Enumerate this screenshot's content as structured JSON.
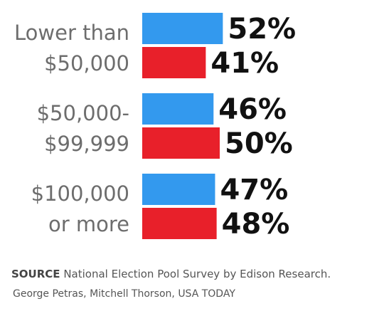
{
  "chart_data": {
    "type": "bar",
    "orientation": "horizontal",
    "categories": [
      [
        "Lower than",
        "$50,000"
      ],
      [
        "$50,000-",
        "$99,999"
      ],
      [
        "$100,000",
        "or more"
      ]
    ],
    "series": [
      {
        "values": [
          52,
          46,
          47
        ],
        "color": "#3399ee"
      },
      {
        "values": [
          41,
          50,
          48
        ],
        "color": "#e8202a"
      }
    ],
    "value_labels": [
      [
        "52%",
        "41%"
      ],
      [
        "46%",
        "50%"
      ],
      [
        "47%",
        "48%"
      ]
    ],
    "legend": "none",
    "grid": false
  },
  "footer": {
    "source_label": "SOURCE",
    "source_text": " National Election Pool Survey by Edison Research.",
    "credit": "George Petras, Mitchell Thorson, USA TODAY"
  }
}
